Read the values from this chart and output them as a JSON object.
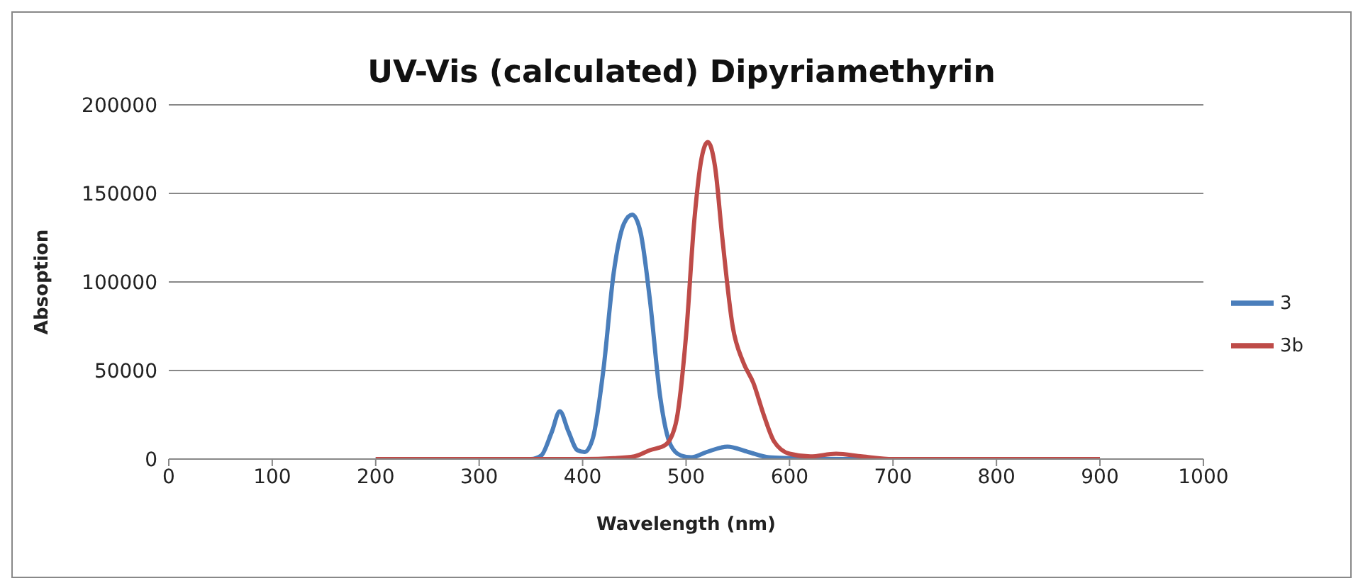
{
  "chart_data": {
    "type": "line",
    "title": "UV-Vis (calculated) Dipyriamethyrin",
    "xlabel": "Wavelength (nm)",
    "ylabel": "Absoption",
    "xlim": [
      0,
      1000
    ],
    "xticks": [
      0,
      100,
      200,
      300,
      400,
      500,
      600,
      700,
      800,
      900,
      1000
    ],
    "ylim": [
      0,
      200000
    ],
    "yticks": [
      0,
      50000,
      100000,
      150000,
      200000
    ],
    "grid": "y",
    "legend": "right",
    "marker": "none",
    "line_style": "solid",
    "series": [
      {
        "name": "3",
        "color": "#4a7ebb",
        "x": [
          200,
          300,
          350,
          360,
          370,
          378,
          386,
          395,
          402,
          410,
          420,
          430,
          440,
          448,
          456,
          465,
          475,
          485,
          495,
          505,
          520,
          540,
          560,
          580,
          600,
          650,
          700
        ],
        "values": [
          0,
          0,
          0,
          2000,
          15000,
          27000,
          16000,
          5000,
          4000,
          12000,
          50000,
          105000,
          133000,
          138000,
          128000,
          90000,
          35000,
          8000,
          2000,
          1000,
          4000,
          7000,
          4000,
          1000,
          500,
          0,
          0
        ]
      },
      {
        "name": "3b",
        "color": "#be4b48",
        "x": [
          200,
          300,
          400,
          430,
          450,
          465,
          480,
          490,
          500,
          508,
          515,
          521,
          528,
          535,
          545,
          555,
          565,
          575,
          585,
          600,
          620,
          645,
          670,
          700,
          800,
          900
        ],
        "values": [
          0,
          0,
          0,
          500,
          1500,
          5000,
          8000,
          20000,
          70000,
          135000,
          170000,
          179000,
          165000,
          125000,
          75000,
          55000,
          43000,
          25000,
          10000,
          3000,
          1500,
          3000,
          1500,
          0,
          0,
          0
        ]
      }
    ]
  }
}
